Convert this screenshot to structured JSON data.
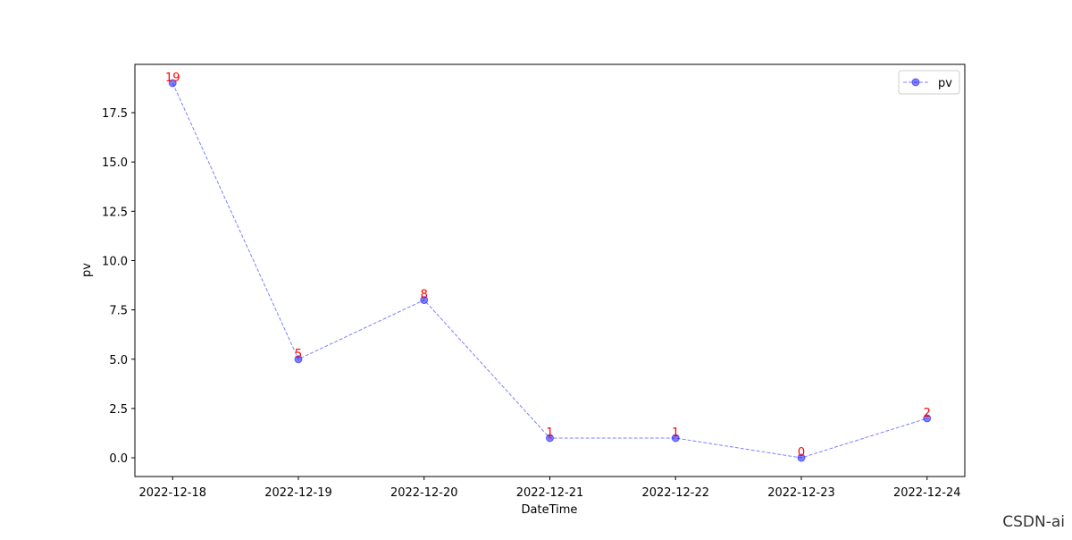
{
  "chart_data": {
    "type": "line",
    "xlabel": "DateTime",
    "ylabel": "pv",
    "categories": [
      "2022-12-18",
      "2022-12-19",
      "2022-12-20",
      "2022-12-21",
      "2022-12-22",
      "2022-12-23",
      "2022-12-24"
    ],
    "series": [
      {
        "name": "pv",
        "color": "#0000ff",
        "values": [
          19,
          5,
          8,
          1,
          1,
          0,
          2
        ]
      }
    ],
    "label_color": "#ff0000",
    "ylim": [
      -0.95,
      19.95
    ],
    "yticks": [
      {
        "value": 0,
        "label": "0.0"
      },
      2.5,
      {
        "value": 5,
        "label": "5.0"
      },
      7.5,
      {
        "value": 10,
        "label": "10.0"
      },
      12.5,
      {
        "value": 15,
        "label": "15.0"
      },
      17.5
    ],
    "legend": "upper right"
  },
  "watermark": "CSDN-ai"
}
